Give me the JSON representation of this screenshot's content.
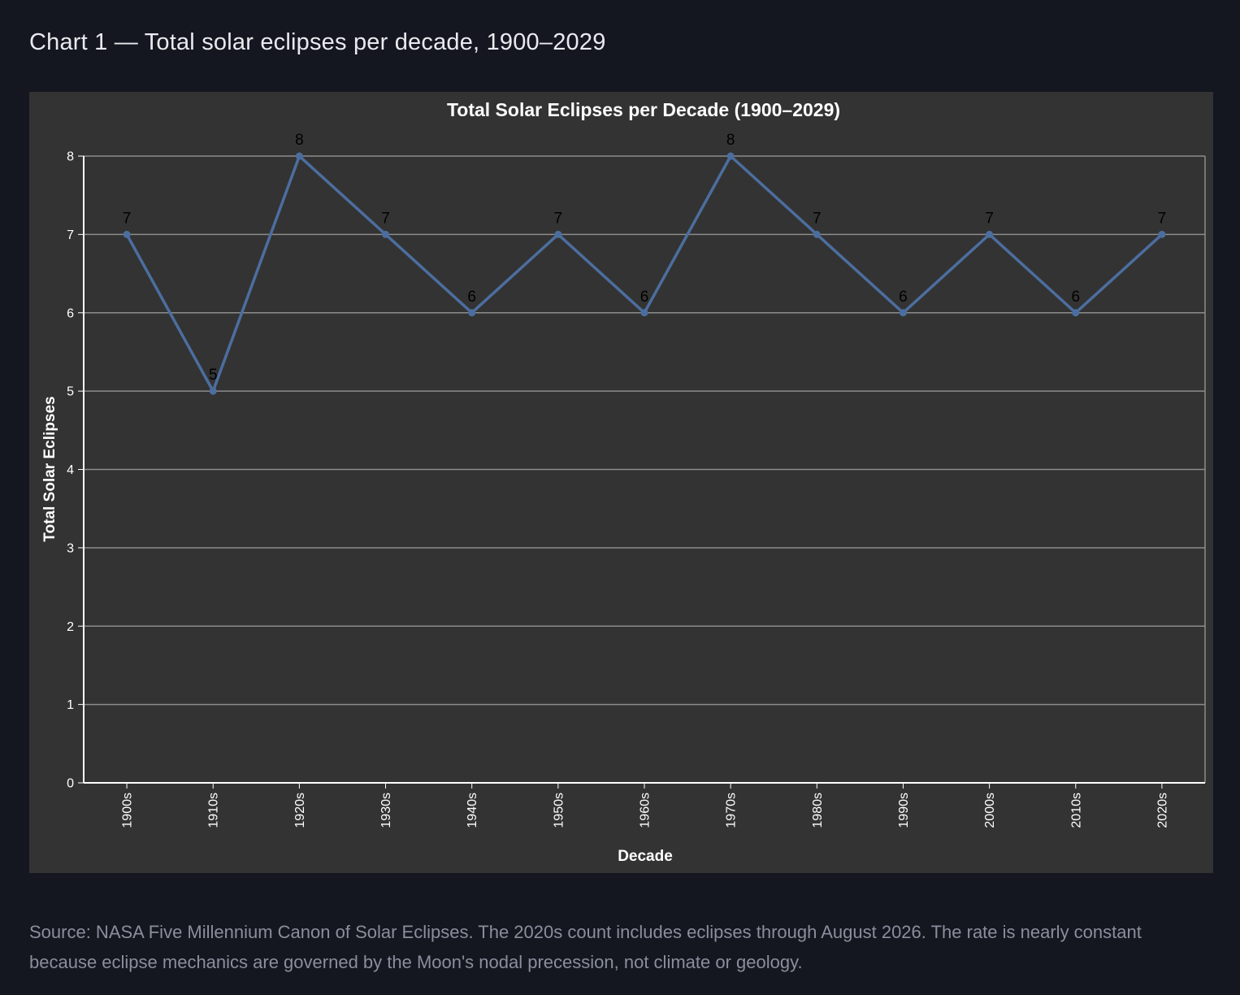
{
  "page": {
    "heading": "Chart 1 — Total solar eclipses per decade, 1900–2029",
    "caption": "Source: NASA Five Millennium Canon of Solar Eclipses. The 2020s count includes eclipses through August 2026. The rate is nearly constant because eclipse mechanics are governed by the Moon's nodal precession, not climate or geology."
  },
  "colors": {
    "page_background": "#141620",
    "panel_background": "#333333",
    "line": "#4c6e9f",
    "gridline": "#8c8c8c",
    "axis_text": "#ffffff",
    "data_label": "#000000"
  },
  "chart_data": {
    "type": "line",
    "title": "Total Solar Eclipses per Decade (1900–2029)",
    "xlabel": "Decade",
    "ylabel": "Total Solar Eclipses",
    "categories": [
      "1900s",
      "1910s",
      "1920s",
      "1930s",
      "1940s",
      "1950s",
      "1960s",
      "1970s",
      "1980s",
      "1990s",
      "2000s",
      "2010s",
      "2020s"
    ],
    "series": [
      {
        "values": [
          7,
          5,
          8,
          7,
          6,
          7,
          6,
          8,
          7,
          6,
          7,
          6,
          7
        ]
      }
    ],
    "data_labels": [
      "7",
      "5",
      "8",
      "7",
      "6",
      "7",
      "6",
      "8",
      "7",
      "6",
      "7",
      "6",
      "7"
    ],
    "ylim": [
      0,
      8
    ],
    "yticks": [
      "0",
      "1",
      "2",
      "3",
      "4",
      "5",
      "6",
      "7",
      "8"
    ],
    "grid": true,
    "legend": "none",
    "markers": true
  }
}
